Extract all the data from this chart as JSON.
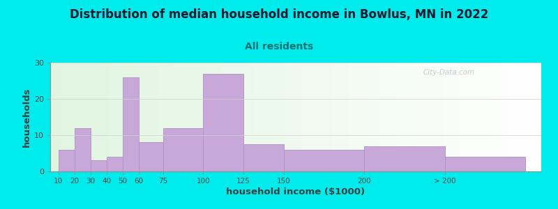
{
  "title": "Distribution of median household income in Bowlus, MN in 2022",
  "subtitle": "All residents",
  "xlabel": "household income ($1000)",
  "ylabel": "households",
  "bar_values": [
    6,
    12,
    3,
    4,
    26,
    8,
    12,
    27,
    7.5,
    6,
    7,
    4
  ],
  "bar_widths": [
    10,
    10,
    10,
    10,
    10,
    15,
    25,
    25,
    25,
    50,
    50,
    50
  ],
  "bar_lefts": [
    10,
    20,
    30,
    40,
    50,
    60,
    75,
    100,
    125,
    150,
    200,
    250
  ],
  "bar_color": "#c8a8d8",
  "bar_edge_color": "#b090c0",
  "background_color": "#00ecec",
  "title_color": "#1a1a2e",
  "subtitle_color": "#007070",
  "axis_label_color": "#404040",
  "tick_label_color": "#404040",
  "ylim": [
    0,
    30
  ],
  "yticks": [
    0,
    10,
    20,
    30
  ],
  "xtick_positions": [
    10,
    20,
    30,
    40,
    50,
    60,
    75,
    100,
    125,
    150,
    200,
    250
  ],
  "xtick_labels": [
    "10",
    "20",
    "30",
    "40",
    "50",
    "60",
    "75",
    "100",
    "125",
    "150",
    "200",
    "> 200"
  ],
  "watermark": "City-Data.com",
  "title_fontsize": 12,
  "subtitle_fontsize": 10,
  "label_fontsize": 9.5
}
